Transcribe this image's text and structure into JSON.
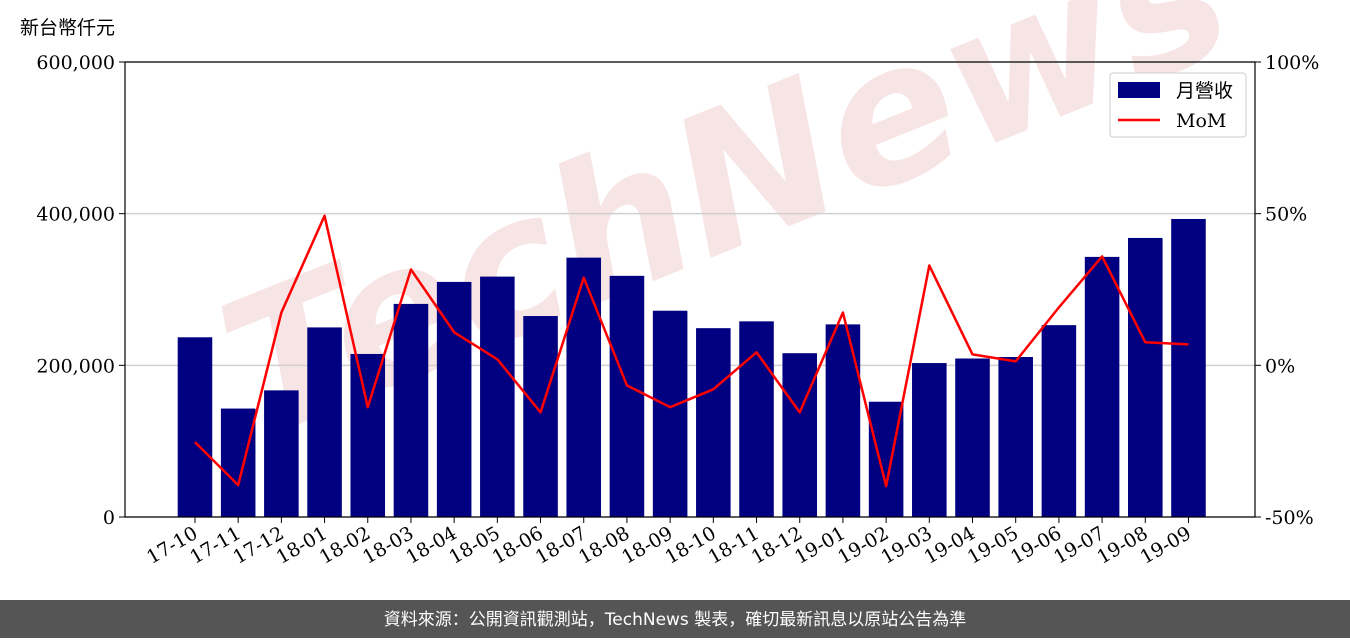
{
  "chart_data": {
    "type": "bar",
    "y_axis_label": "新台幣仟元",
    "watermark": "TechNews",
    "footer": "資料來源：公開資訊觀測站，TechNews 製表，確切最新訊息以原站公告為準",
    "categories": [
      "17-10",
      "17-11",
      "17-12",
      "18-01",
      "18-02",
      "18-03",
      "18-04",
      "18-05",
      "18-06",
      "18-07",
      "18-08",
      "18-09",
      "18-10",
      "18-11",
      "18-12",
      "19-01",
      "19-02",
      "19-03",
      "19-04",
      "19-05",
      "19-06",
      "19-07",
      "19-08",
      "19-09"
    ],
    "series": [
      {
        "name": "月營收",
        "type": "bar",
        "color": "#000080",
        "values": [
          237000,
          143000,
          167000,
          250000,
          215000,
          281000,
          310000,
          317000,
          265000,
          342000,
          318000,
          272000,
          249000,
          258000,
          216000,
          254000,
          152000,
          203000,
          209000,
          211000,
          253000,
          343000,
          368000,
          393000
        ]
      },
      {
        "name": "MoM",
        "type": "line",
        "axis": "y2",
        "color": "#ff0000",
        "values": [
          -25.3,
          -39.5,
          17.4,
          49.3,
          -13.8,
          31.6,
          10.9,
          2.0,
          -15.5,
          28.9,
          -6.6,
          -13.8,
          -7.9,
          4.3,
          -15.5,
          17.4,
          -39.8,
          32.9,
          3.6,
          1.3,
          19.1,
          35.9,
          7.6,
          6.9
        ]
      }
    ],
    "ylim": [
      0,
      600000
    ],
    "yticks": [
      0,
      {
        "value": 200000,
        "label": "200,000"
      },
      {
        "value": 400000,
        "label": "400,000"
      },
      {
        "value": 600000,
        "label": "600,000"
      }
    ],
    "y2lim": [
      -50,
      100
    ],
    "y2ticks": [
      {
        "value": -50,
        "label": "-50%"
      },
      {
        "value": 0,
        "label": "0%"
      },
      {
        "value": 50,
        "label": "50%"
      },
      {
        "value": 100,
        "label": "100%"
      }
    ],
    "grid": true,
    "legend": "upper right"
  }
}
